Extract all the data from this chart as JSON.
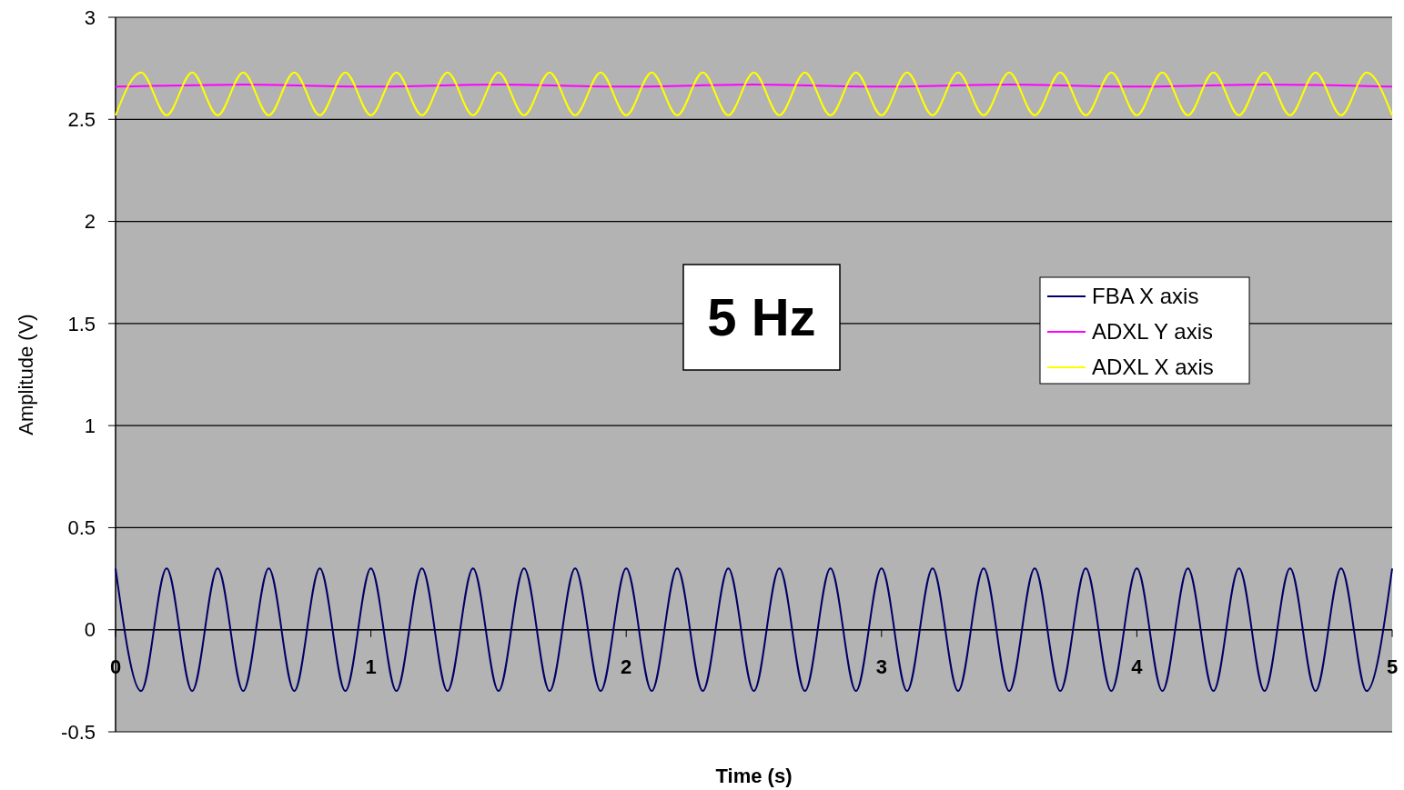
{
  "chart_data": {
    "type": "line",
    "xlabel": "Time (s)",
    "ylabel": "Amplitude (V)",
    "annotations": [
      "5 Hz"
    ],
    "xlim": [
      0,
      5
    ],
    "xticks": [
      0,
      1,
      2,
      3,
      4,
      5
    ],
    "ylim": [
      -0.5,
      3
    ],
    "yticks": [
      -0.5,
      0,
      0.5,
      1,
      1.5,
      2,
      2.5,
      3
    ],
    "grid": "y",
    "legend": "right",
    "marker": "none",
    "line_style": "solid",
    "x": [
      0,
      0.1,
      0.2,
      0.3,
      0.4,
      0.5,
      0.6,
      0.7,
      0.8,
      0.9,
      1,
      1.1,
      1.2,
      1.3,
      1.4,
      1.5,
      1.6,
      1.7,
      1.8,
      1.9,
      2,
      2.1,
      2.2,
      2.3,
      2.4,
      2.5,
      2.6,
      2.7,
      2.8,
      2.9,
      3,
      3.1,
      3.2,
      3.3,
      3.4,
      3.5,
      3.6,
      3.7,
      3.8,
      3.9,
      4,
      4.1,
      4.2,
      4.3,
      4.4,
      4.5,
      4.6,
      4.7,
      4.8,
      4.9,
      5
    ],
    "series": [
      {
        "name": "FBA X axis",
        "color": "#000066",
        "values": [
          0.3,
          -0.3,
          0.3,
          -0.3,
          0.3,
          -0.3,
          0.3,
          -0.3,
          0.3,
          -0.3,
          0.3,
          -0.3,
          0.3,
          -0.3,
          0.3,
          -0.3,
          0.3,
          -0.3,
          0.3,
          -0.3,
          0.3,
          -0.3,
          0.3,
          -0.3,
          0.3,
          -0.3,
          0.3,
          -0.3,
          0.3,
          -0.3,
          0.3,
          -0.3,
          0.3,
          -0.3,
          0.3,
          -0.3,
          0.3,
          -0.3,
          0.3,
          -0.3,
          0.3,
          -0.3,
          0.3,
          -0.3,
          0.3,
          -0.3,
          0.3,
          -0.3,
          0.3,
          -0.3,
          0.3
        ]
      },
      {
        "name": "ADXL Y axis",
        "color": "#ff00ff",
        "x": [
          0,
          0.5,
          1,
          1.5,
          2,
          2.5,
          3,
          3.5,
          4,
          4.5,
          5
        ],
        "values": [
          2.66,
          2.67,
          2.66,
          2.67,
          2.66,
          2.67,
          2.66,
          2.67,
          2.66,
          2.67,
          2.66
        ]
      },
      {
        "name": "ADXL X axis",
        "color": "#ffff00",
        "values": [
          2.52,
          2.73,
          2.52,
          2.73,
          2.52,
          2.73,
          2.52,
          2.73,
          2.52,
          2.73,
          2.52,
          2.73,
          2.52,
          2.73,
          2.52,
          2.73,
          2.52,
          2.73,
          2.52,
          2.73,
          2.52,
          2.73,
          2.52,
          2.73,
          2.52,
          2.73,
          2.52,
          2.73,
          2.52,
          2.73,
          2.52,
          2.73,
          2.52,
          2.73,
          2.52,
          2.73,
          2.52,
          2.73,
          2.52,
          2.73,
          2.52,
          2.73,
          2.52,
          2.73,
          2.52,
          2.73,
          2.52,
          2.73,
          2.52,
          2.73,
          2.52
        ]
      }
    ]
  }
}
